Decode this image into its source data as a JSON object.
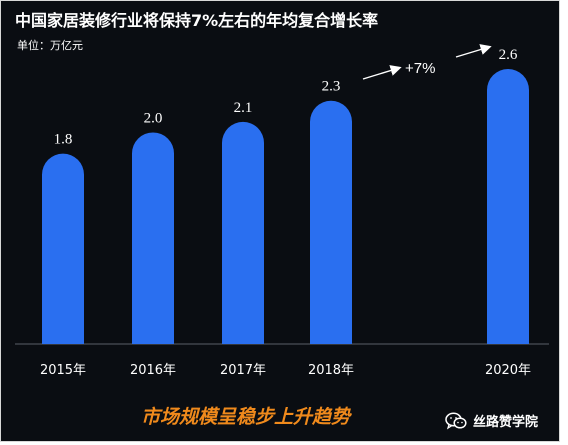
{
  "chart_data": {
    "type": "bar",
    "title": "中国家居装修行业将保持7%左右的年均复合增长率",
    "subtitle": "单位：万亿元",
    "categories": [
      "2015年",
      "2016年",
      "2017年",
      "2018年",
      "2020年"
    ],
    "values": [
      1.8,
      2.0,
      2.1,
      2.3,
      2.6
    ],
    "value_labels": [
      "1.8",
      "2.0",
      "2.1",
      "2.3",
      "2.6"
    ],
    "annotation": "+7%",
    "ylim": [
      0,
      2.6
    ],
    "grid": false,
    "bar_color": "#2a6ff0",
    "background_color": "#0a0d12"
  },
  "footer": {
    "slogan": "市场规模呈稳步上升趋势",
    "slogan_color": "#f08a1c"
  },
  "watermark": {
    "icon": "wechat-icon",
    "text": "丝路赞学院"
  }
}
